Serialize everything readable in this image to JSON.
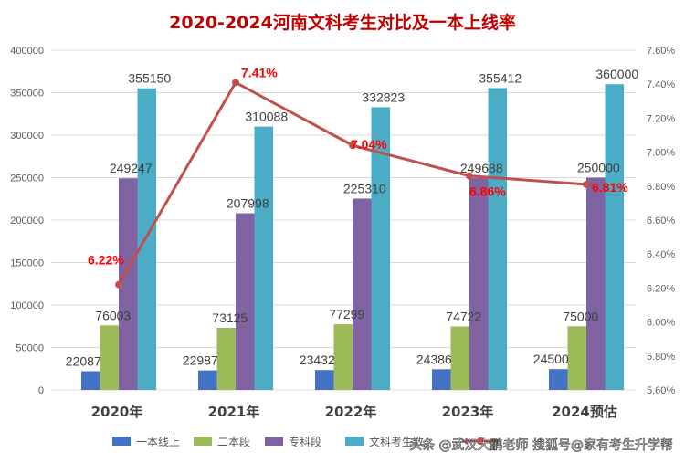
{
  "chart_data": {
    "type": "bar",
    "title": "2020-2024河南文科考生对比及一本上线率",
    "categories": [
      "2020年",
      "2021年",
      "2022年",
      "2023年",
      "2024预估"
    ],
    "series": [
      {
        "name": "一本线上",
        "color": "#4472C4",
        "values": [
          22087,
          22987,
          23432,
          24386,
          24500
        ]
      },
      {
        "name": "二本段",
        "color": "#9BBB59",
        "values": [
          76003,
          73125,
          77299,
          74722,
          75000
        ]
      },
      {
        "name": "专科段",
        "color": "#8064A2",
        "values": [
          249247,
          207998,
          225310,
          249688,
          250000
        ]
      },
      {
        "name": "文科考生数",
        "color": "#4BACC6",
        "values": [
          355150,
          310088,
          332823,
          355412,
          360000
        ]
      }
    ],
    "line_series": {
      "name": "",
      "color": "#C0504D",
      "label_color": "#FF0000",
      "values": [
        6.22,
        7.41,
        7.04,
        6.86,
        6.81
      ],
      "labels": [
        "6.22%",
        "7.41%",
        "7.04%",
        "6.86%",
        "6.81%"
      ]
    },
    "y_left": {
      "min": 0,
      "max": 400000,
      "ticks": [
        "0",
        "50000",
        "100000",
        "150000",
        "200000",
        "250000",
        "300000",
        "350000",
        "400000"
      ]
    },
    "y_right": {
      "min": 5.6,
      "max": 7.6,
      "ticks": [
        "5.60%",
        "5.80%",
        "6.00%",
        "6.20%",
        "6.40%",
        "6.60%",
        "6.80%",
        "7.00%",
        "7.20%",
        "7.40%",
        "7.60%"
      ]
    },
    "grid": true,
    "legend_position": "bottom"
  },
  "colors": {
    "title": "#C00000",
    "grid": "#D9D9D9"
  },
  "watermark": "头条 @武汉大鹏老师  搜狐号@家有考生升学帮"
}
